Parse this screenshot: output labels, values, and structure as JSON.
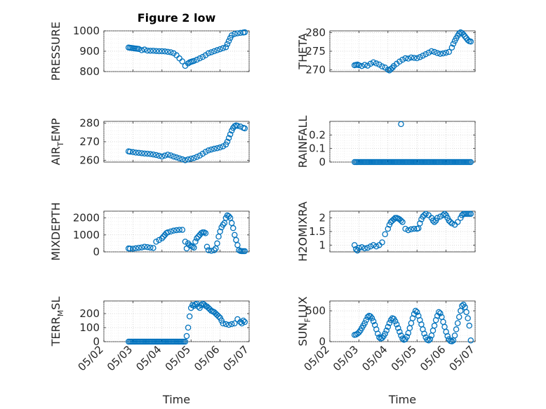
{
  "chart_data": [
    {
      "type": "scatter",
      "title": "Figure 2 low",
      "ylabel": "PRESSURE",
      "xlabel": "",
      "xlim": [
        0,
        5
      ],
      "ylim": [
        800,
        1000
      ],
      "yticks": [
        800,
        900,
        1000
      ],
      "x": [
        0.85,
        0.9,
        0.95,
        1.0,
        1.05,
        1.1,
        1.15,
        1.2,
        1.3,
        1.4,
        1.5,
        1.6,
        1.7,
        1.8,
        1.9,
        2.0,
        2.1,
        2.2,
        2.3,
        2.4,
        2.5,
        2.6,
        2.7,
        2.8,
        2.9,
        2.95,
        3.0,
        3.05,
        3.1,
        3.2,
        3.3,
        3.4,
        3.5,
        3.6,
        3.7,
        3.8,
        3.9,
        4.0,
        4.1,
        4.2,
        4.25,
        4.3,
        4.35,
        4.4,
        4.5,
        4.6,
        4.7,
        4.8,
        4.85
      ],
      "y": [
        918,
        917,
        916,
        915,
        914,
        913,
        912,
        911,
        905,
        908,
        903,
        902,
        902,
        901,
        900,
        900,
        899,
        897,
        895,
        890,
        880,
        865,
        850,
        828,
        840,
        845,
        848,
        850,
        852,
        858,
        865,
        872,
        880,
        890,
        895,
        900,
        905,
        910,
        915,
        920,
        935,
        950,
        965,
        978,
        985,
        988,
        990,
        992,
        993
      ]
    },
    {
      "type": "scatter",
      "ylabel": "THETA",
      "xlabel": "",
      "xlim": [
        0,
        5
      ],
      "ylim": [
        269.5,
        280.5
      ],
      "yticks": [
        270,
        275,
        280
      ],
      "x": [
        0.85,
        0.9,
        0.95,
        1.0,
        1.1,
        1.2,
        1.3,
        1.4,
        1.5,
        1.6,
        1.7,
        1.8,
        1.9,
        2.0,
        2.05,
        2.1,
        2.15,
        2.2,
        2.3,
        2.4,
        2.5,
        2.6,
        2.7,
        2.8,
        2.9,
        3.0,
        3.1,
        3.2,
        3.3,
        3.4,
        3.5,
        3.6,
        3.7,
        3.8,
        3.9,
        4.0,
        4.1,
        4.2,
        4.25,
        4.3,
        4.35,
        4.4,
        4.45,
        4.5,
        4.55,
        4.6,
        4.65,
        4.7,
        4.75,
        4.8,
        4.85
      ],
      "y": [
        271.2,
        271.3,
        271.4,
        271.2,
        271.0,
        271.3,
        271.1,
        271.6,
        272.0,
        271.7,
        271.4,
        270.9,
        270.6,
        270.0,
        269.8,
        270.2,
        270.5,
        271.0,
        271.6,
        272.2,
        272.7,
        273.1,
        273.0,
        273.3,
        273.2,
        273.1,
        273.4,
        273.8,
        274.2,
        274.6,
        275.0,
        274.8,
        274.5,
        274.3,
        274.4,
        274.6,
        274.8,
        276.0,
        277.0,
        277.8,
        278.5,
        279.2,
        279.8,
        280.1,
        279.9,
        279.5,
        279.0,
        278.5,
        278.0,
        277.7,
        277.6
      ]
    },
    {
      "type": "scatter",
      "ylabel": "AIR_TEMP",
      "xlabel": "",
      "xlim": [
        0,
        5
      ],
      "ylim": [
        259,
        281
      ],
      "yticks": [
        260,
        270,
        280
      ],
      "x": [
        0.85,
        0.9,
        1.0,
        1.1,
        1.2,
        1.3,
        1.4,
        1.5,
        1.6,
        1.7,
        1.8,
        1.9,
        2.0,
        2.1,
        2.2,
        2.3,
        2.4,
        2.5,
        2.6,
        2.7,
        2.8,
        2.9,
        3.0,
        3.1,
        3.2,
        3.3,
        3.4,
        3.5,
        3.6,
        3.7,
        3.8,
        3.9,
        4.0,
        4.1,
        4.2,
        4.25,
        4.3,
        4.35,
        4.4,
        4.45,
        4.5,
        4.55,
        4.6,
        4.7,
        4.8,
        4.85
      ],
      "y": [
        264.8,
        264.6,
        264.4,
        264.1,
        264.0,
        263.8,
        263.6,
        263.5,
        263.3,
        263.1,
        262.8,
        262.4,
        262.0,
        262.5,
        263.0,
        262.6,
        262.0,
        261.5,
        261.0,
        260.5,
        260.0,
        260.4,
        260.8,
        261.2,
        261.8,
        262.5,
        263.5,
        264.5,
        265.3,
        265.8,
        266.2,
        266.5,
        266.9,
        267.5,
        268.5,
        270.0,
        272.0,
        274.0,
        276.0,
        277.5,
        278.4,
        278.8,
        278.6,
        278.2,
        277.5,
        277.2
      ]
    },
    {
      "type": "scatter",
      "ylabel": "RAINFALL",
      "xlabel": "",
      "xlim": [
        0,
        5
      ],
      "ylim": [
        0,
        0.3
      ],
      "yticks": [
        0,
        0.1,
        0.2
      ],
      "x": [
        0.85,
        0.9,
        0.95,
        1.0,
        1.05,
        1.1,
        1.15,
        1.2,
        1.25,
        1.3,
        1.35,
        1.4,
        1.45,
        1.5,
        1.55,
        1.6,
        1.65,
        1.7,
        1.75,
        1.8,
        1.85,
        1.9,
        1.95,
        2.0,
        2.05,
        2.1,
        2.15,
        2.2,
        2.25,
        2.3,
        2.35,
        2.4,
        2.45,
        2.5,
        2.55,
        2.6,
        2.65,
        2.7,
        2.75,
        2.8,
        2.85,
        2.9,
        2.95,
        3.0,
        3.05,
        3.1,
        3.15,
        3.2,
        3.25,
        3.3,
        3.35,
        3.4,
        3.45,
        3.5,
        3.55,
        3.6,
        3.65,
        3.7,
        3.75,
        3.8,
        3.85,
        3.9,
        3.95,
        4.0,
        4.05,
        4.1,
        4.15,
        4.2,
        4.25,
        4.3,
        4.35,
        4.4,
        4.45,
        4.5,
        4.55,
        4.6,
        4.65,
        4.7,
        4.75,
        4.8,
        4.85,
        2.45
      ],
      "y": [
        0,
        0,
        0,
        0,
        0,
        0,
        0,
        0,
        0,
        0,
        0,
        0,
        0,
        0,
        0,
        0,
        0,
        0,
        0,
        0,
        0,
        0,
        0,
        0,
        0,
        0,
        0,
        0,
        0,
        0,
        0,
        0,
        0,
        0,
        0,
        0,
        0,
        0,
        0,
        0,
        0,
        0,
        0,
        0,
        0,
        0,
        0,
        0,
        0,
        0,
        0,
        0,
        0,
        0,
        0,
        0,
        0,
        0,
        0,
        0,
        0,
        0,
        0,
        0,
        0,
        0,
        0,
        0,
        0,
        0,
        0,
        0,
        0,
        0,
        0,
        0,
        0,
        0,
        0,
        0,
        0,
        0.28
      ]
    },
    {
      "type": "scatter",
      "ylabel": "MIXDEPTH",
      "xlabel": "",
      "xlim": [
        0,
        5
      ],
      "ylim": [
        0,
        2400
      ],
      "yticks": [
        0,
        1000,
        2000
      ],
      "x": [
        0.85,
        0.9,
        1.0,
        1.1,
        1.2,
        1.3,
        1.4,
        1.5,
        1.6,
        1.7,
        1.8,
        1.9,
        2.0,
        2.05,
        2.1,
        2.15,
        2.2,
        2.3,
        2.4,
        2.5,
        2.6,
        2.7,
        2.8,
        2.85,
        2.9,
        2.95,
        3.0,
        3.05,
        3.1,
        3.15,
        3.2,
        3.25,
        3.3,
        3.35,
        3.4,
        3.45,
        3.5,
        3.55,
        3.6,
        3.7,
        3.8,
        3.85,
        3.9,
        3.95,
        4.0,
        4.05,
        4.1,
        4.15,
        4.2,
        4.25,
        4.3,
        4.35,
        4.4,
        4.45,
        4.5,
        4.55,
        4.6,
        4.65,
        4.7,
        4.75,
        4.8,
        4.85
      ],
      "y": [
        200,
        190,
        180,
        210,
        240,
        260,
        300,
        280,
        250,
        230,
        600,
        700,
        800,
        900,
        1000,
        1100,
        1150,
        1200,
        1250,
        1280,
        1300,
        1300,
        600,
        200,
        500,
        400,
        350,
        300,
        250,
        600,
        800,
        900,
        1000,
        1100,
        1150,
        1150,
        1100,
        300,
        100,
        60,
        100,
        200,
        500,
        900,
        1200,
        1450,
        1600,
        1700,
        2000,
        2150,
        2100,
        2000,
        1700,
        1400,
        1000,
        700,
        400,
        100,
        50,
        40,
        40,
        40
      ]
    },
    {
      "type": "scatter",
      "ylabel": "H2OMIXRA",
      "xlabel": "",
      "xlim": [
        0,
        5
      ],
      "ylim": [
        0.75,
        2.25
      ],
      "yticks": [
        1,
        1.5,
        2
      ],
      "x": [
        0.85,
        0.9,
        0.95,
        1.0,
        1.1,
        1.2,
        1.3,
        1.4,
        1.5,
        1.6,
        1.7,
        1.8,
        1.9,
        2.0,
        2.05,
        2.1,
        2.15,
        2.2,
        2.25,
        2.3,
        2.35,
        2.4,
        2.45,
        2.5,
        2.6,
        2.7,
        2.8,
        2.9,
        3.0,
        3.05,
        3.1,
        3.15,
        3.2,
        3.25,
        3.3,
        3.4,
        3.5,
        3.55,
        3.6,
        3.65,
        3.7,
        3.8,
        3.9,
        3.95,
        4.0,
        4.05,
        4.1,
        4.15,
        4.2,
        4.3,
        4.4,
        4.5,
        4.55,
        4.6,
        4.65,
        4.7,
        4.75,
        4.8,
        4.85
      ],
      "y": [
        1.0,
        0.85,
        0.8,
        0.9,
        0.92,
        0.88,
        0.9,
        0.95,
        1.0,
        0.95,
        1.0,
        1.1,
        1.4,
        1.6,
        1.75,
        1.85,
        1.9,
        1.95,
        2.0,
        2.0,
        1.98,
        1.95,
        1.9,
        1.85,
        1.6,
        1.55,
        1.58,
        1.6,
        1.6,
        1.62,
        1.8,
        1.95,
        2.05,
        2.1,
        2.15,
        2.1,
        2.0,
        1.9,
        1.85,
        1.9,
        2.0,
        2.05,
        2.1,
        2.15,
        2.1,
        2.0,
        1.9,
        1.85,
        1.8,
        1.75,
        1.85,
        2.0,
        2.1,
        2.15,
        2.15,
        2.15,
        2.15,
        2.15,
        2.15
      ]
    },
    {
      "type": "scatter",
      "ylabel": "TERR_MSL",
      "xlabel": "Time",
      "xlim": [
        0,
        5
      ],
      "ylim": [
        0,
        290
      ],
      "yticks": [
        0,
        100,
        200
      ],
      "xticklabels": [
        "05/02",
        "05/03",
        "05/04",
        "05/05",
        "05/06",
        "05/07"
      ],
      "x": [
        0.85,
        0.9,
        0.95,
        1.0,
        1.05,
        1.1,
        1.15,
        1.2,
        1.25,
        1.3,
        1.35,
        1.4,
        1.45,
        1.5,
        1.55,
        1.6,
        1.65,
        1.7,
        1.75,
        1.8,
        1.85,
        1.9,
        1.95,
        2.0,
        2.05,
        2.1,
        2.15,
        2.2,
        2.25,
        2.3,
        2.35,
        2.4,
        2.45,
        2.5,
        2.55,
        2.6,
        2.65,
        2.7,
        2.75,
        2.8,
        2.85,
        2.9,
        2.95,
        3.0,
        3.05,
        3.1,
        3.15,
        3.2,
        3.25,
        3.3,
        3.35,
        3.4,
        3.45,
        3.5,
        3.55,
        3.6,
        3.65,
        3.7,
        3.75,
        3.8,
        3.85,
        3.9,
        3.95,
        4.0,
        4.05,
        4.1,
        4.2,
        4.3,
        4.4,
        4.5,
        4.6,
        4.7,
        4.75,
        4.8,
        4.85
      ],
      "y": [
        0,
        0,
        0,
        0,
        0,
        0,
        0,
        0,
        0,
        0,
        0,
        0,
        0,
        0,
        0,
        0,
        0,
        0,
        0,
        0,
        0,
        0,
        0,
        0,
        0,
        0,
        0,
        0,
        0,
        0,
        0,
        0,
        0,
        0,
        0,
        0,
        0,
        0,
        0,
        0,
        40,
        100,
        180,
        240,
        260,
        255,
        265,
        270,
        250,
        240,
        260,
        270,
        265,
        255,
        250,
        240,
        230,
        220,
        215,
        210,
        200,
        190,
        180,
        170,
        150,
        130,
        125,
        120,
        125,
        130,
        160,
        140,
        130,
        150,
        140
      ]
    },
    {
      "type": "scatter",
      "ylabel": "SUN_FLUX",
      "xlabel": "Time",
      "xlim": [
        0,
        5
      ],
      "ylim": [
        0,
        660
      ],
      "yticks": [
        0,
        500
      ],
      "xticklabels": [
        "05/02",
        "05/03",
        "05/04",
        "05/05",
        "05/06",
        "05/07"
      ],
      "x": [
        0.85,
        0.9,
        0.95,
        1.0,
        1.05,
        1.1,
        1.15,
        1.2,
        1.25,
        1.3,
        1.35,
        1.4,
        1.45,
        1.5,
        1.55,
        1.6,
        1.65,
        1.7,
        1.75,
        1.8,
        1.85,
        1.9,
        1.95,
        2.0,
        2.05,
        2.1,
        2.15,
        2.2,
        2.25,
        2.3,
        2.35,
        2.4,
        2.45,
        2.5,
        2.55,
        2.6,
        2.65,
        2.7,
        2.75,
        2.8,
        2.85,
        2.9,
        2.95,
        3.0,
        3.05,
        3.1,
        3.15,
        3.2,
        3.25,
        3.3,
        3.35,
        3.4,
        3.45,
        3.5,
        3.55,
        3.6,
        3.65,
        3.7,
        3.75,
        3.8,
        3.85,
        3.9,
        3.95,
        4.0,
        4.05,
        4.1,
        4.15,
        4.2,
        4.25,
        4.3,
        4.35,
        4.4,
        4.45,
        4.5,
        4.55,
        4.6,
        4.65,
        4.7,
        4.75,
        4.8,
        4.85
      ],
      "y": [
        110,
        115,
        130,
        150,
        180,
        220,
        260,
        300,
        350,
        400,
        420,
        410,
        380,
        330,
        270,
        200,
        130,
        70,
        50,
        60,
        90,
        130,
        180,
        240,
        300,
        350,
        380,
        370,
        330,
        280,
        220,
        160,
        100,
        50,
        30,
        40,
        80,
        140,
        220,
        300,
        380,
        450,
        500,
        480,
        420,
        350,
        280,
        200,
        130,
        70,
        30,
        20,
        40,
        100,
        180,
        260,
        350,
        420,
        480,
        460,
        400,
        320,
        240,
        160,
        90,
        40,
        10,
        5,
        20,
        100,
        200,
        300,
        400,
        500,
        580,
        600,
        560,
        480,
        380,
        260,
        20
      ]
    }
  ],
  "colors": {
    "marker": "#0072BD",
    "axis": "#262626",
    "grid": "#b8b8b8"
  }
}
